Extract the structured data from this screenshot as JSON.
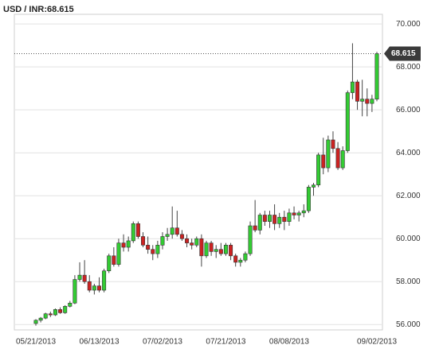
{
  "chart_data": {
    "type": "candlestick",
    "title": "USD / INR:68.615",
    "categories": [
      "05/21/2013",
      null,
      null,
      null,
      null,
      null,
      null,
      null,
      null,
      null,
      null,
      null,
      null,
      "06/13/2013",
      null,
      null,
      null,
      null,
      null,
      null,
      null,
      null,
      null,
      null,
      null,
      null,
      "07/02/2013",
      null,
      null,
      null,
      null,
      null,
      null,
      null,
      null,
      null,
      null,
      null,
      null,
      "07/21/2013",
      null,
      null,
      null,
      null,
      null,
      null,
      null,
      null,
      null,
      null,
      null,
      null,
      "08/08/2013",
      null,
      null,
      null,
      null,
      null,
      null,
      null,
      null,
      null,
      null,
      null,
      null,
      null,
      null,
      null,
      null,
      null,
      "09/02/2013"
    ],
    "open": [
      56.05,
      56.2,
      56.3,
      56.5,
      56.45,
      56.7,
      56.55,
      56.85,
      57.0,
      58.1,
      58.3,
      58.0,
      57.6,
      57.8,
      57.6,
      58.5,
      59.2,
      58.8,
      59.8,
      59.6,
      59.9,
      60.7,
      60.1,
      59.7,
      59.5,
      59.3,
      59.7,
      60.1,
      60.2,
      60.5,
      60.2,
      60.0,
      59.8,
      59.7,
      60.0,
      59.2,
      59.8,
      59.4,
      59.5,
      59.3,
      59.7,
      59.2,
      58.9,
      59.0,
      59.3,
      60.6,
      60.4,
      61.1,
      60.8,
      61.1,
      60.7,
      61.0,
      60.8,
      61.2,
      61.1,
      61.2,
      61.3,
      62.4,
      62.5,
      63.9,
      63.3,
      64.6,
      64.2,
      63.3,
      64.1,
      66.8,
      67.3,
      66.4,
      66.5,
      66.3,
      66.5
    ],
    "high": [
      56.25,
      56.35,
      56.55,
      56.6,
      56.75,
      56.8,
      56.9,
      57.1,
      58.3,
      58.9,
      59.0,
      58.3,
      57.9,
      58.2,
      58.6,
      59.3,
      59.6,
      60.0,
      60.2,
      60.1,
      60.8,
      60.8,
      60.3,
      60.1,
      59.7,
      59.9,
      60.3,
      60.5,
      61.5,
      61.3,
      60.4,
      60.2,
      60.0,
      60.1,
      60.2,
      59.9,
      59.9,
      59.7,
      59.8,
      59.8,
      59.8,
      59.3,
      59.1,
      59.4,
      60.8,
      61.8,
      61.2,
      61.3,
      61.3,
      61.6,
      61.2,
      61.3,
      61.4,
      61.5,
      61.3,
      61.6,
      62.5,
      62.6,
      64.0,
      64.7,
      64.8,
      65.0,
      64.5,
      64.3,
      66.9,
      69.1,
      67.4,
      67.4,
      67.0,
      66.7,
      68.7
    ],
    "low": [
      55.95,
      56.1,
      56.25,
      56.35,
      56.4,
      56.5,
      56.5,
      56.8,
      56.95,
      58.0,
      57.9,
      57.5,
      57.4,
      57.5,
      57.5,
      58.4,
      58.7,
      58.7,
      59.4,
      59.4,
      59.8,
      60.0,
      59.6,
      59.3,
      59.0,
      59.1,
      59.5,
      59.9,
      60.0,
      60.1,
      59.9,
      59.6,
      59.5,
      59.6,
      58.7,
      59.1,
      59.2,
      59.1,
      59.2,
      59.2,
      59.0,
      58.7,
      58.7,
      58.9,
      59.2,
      60.3,
      60.2,
      60.6,
      60.5,
      60.4,
      60.5,
      60.4,
      60.6,
      60.9,
      60.8,
      61.0,
      61.2,
      62.0,
      62.4,
      63.0,
      63.1,
      64.0,
      63.2,
      63.2,
      64.0,
      66.5,
      66.0,
      65.7,
      65.7,
      65.9,
      66.4
    ],
    "close": [
      56.2,
      56.3,
      56.5,
      56.45,
      56.7,
      56.55,
      56.85,
      57.0,
      58.1,
      58.3,
      58.0,
      57.6,
      57.8,
      57.6,
      58.5,
      59.2,
      58.8,
      59.8,
      59.6,
      59.9,
      60.7,
      60.1,
      59.7,
      59.5,
      59.3,
      59.7,
      60.1,
      60.2,
      60.5,
      60.2,
      60.0,
      59.8,
      59.7,
      60.0,
      59.2,
      59.8,
      59.4,
      59.5,
      59.3,
      59.7,
      59.2,
      58.9,
      59.0,
      59.3,
      60.6,
      60.4,
      61.1,
      60.8,
      61.1,
      60.7,
      61.0,
      60.8,
      61.2,
      61.1,
      61.2,
      61.3,
      62.4,
      62.5,
      63.9,
      63.3,
      64.6,
      64.2,
      63.3,
      64.1,
      66.8,
      67.3,
      66.4,
      66.5,
      66.3,
      66.5,
      68.615
    ],
    "up_color": "#33cc33",
    "down_color": "#cc2222",
    "last_price": {
      "value": 68.615,
      "label": "68.615"
    },
    "ylim": [
      55.75,
      70.45
    ],
    "yticks": [
      {
        "value": 56,
        "label": "56.000"
      },
      {
        "value": 58,
        "label": "58.000"
      },
      {
        "value": 60,
        "label": "60.000"
      },
      {
        "value": 62,
        "label": "62.000"
      },
      {
        "value": 64,
        "label": "64.000"
      },
      {
        "value": 66,
        "label": "66.000"
      },
      {
        "value": 68,
        "label": "68.000"
      },
      {
        "value": 70,
        "label": "70.000"
      }
    ],
    "grid": true
  }
}
